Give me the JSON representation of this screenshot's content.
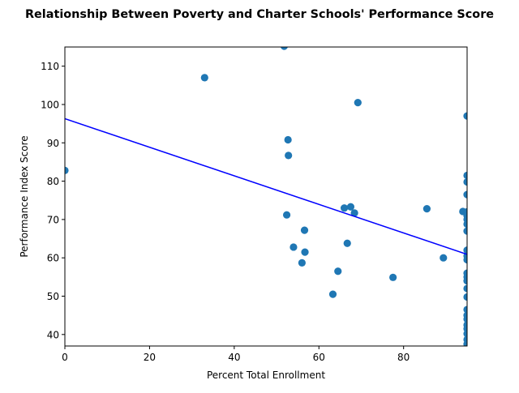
{
  "chart_data": {
    "type": "scatter",
    "title": "Relationship Between Poverty and Charter Schools' Performance Score",
    "xlabel": "Percent Total Enrollment",
    "ylabel": "Performance Index Score",
    "xlim": [
      0,
      95
    ],
    "ylim": [
      37,
      115
    ],
    "x_ticks": [
      0,
      20,
      40,
      60,
      80
    ],
    "y_ticks": [
      40,
      50,
      60,
      70,
      80,
      90,
      100,
      110
    ],
    "grid": false,
    "legend": "none",
    "series": [
      {
        "color": "#1f77b4",
        "marker": "circle",
        "points": [
          [
            0.0,
            82.8
          ],
          [
            33.0,
            107.0
          ],
          [
            51.8,
            115.2
          ],
          [
            52.4,
            71.2
          ],
          [
            52.7,
            90.8
          ],
          [
            52.8,
            86.7
          ],
          [
            54.0,
            62.8
          ],
          [
            56.0,
            58.7
          ],
          [
            56.6,
            67.2
          ],
          [
            56.7,
            61.5
          ],
          [
            63.3,
            50.5
          ],
          [
            64.5,
            56.5
          ],
          [
            66.0,
            73.0
          ],
          [
            66.7,
            63.8
          ],
          [
            67.5,
            73.3
          ],
          [
            68.4,
            71.7
          ],
          [
            69.2,
            100.5
          ],
          [
            77.5,
            54.9
          ],
          [
            85.5,
            72.8
          ],
          [
            89.4,
            60.0
          ],
          [
            94.0,
            72.1
          ],
          [
            95.0,
            97.0
          ],
          [
            95.0,
            81.5
          ],
          [
            95.0,
            79.8
          ],
          [
            95.0,
            76.5
          ],
          [
            95.0,
            72.0
          ],
          [
            95.0,
            71.0
          ],
          [
            95.0,
            70.0
          ],
          [
            95.0,
            68.8
          ],
          [
            95.0,
            67.0
          ],
          [
            95.0,
            62.0
          ],
          [
            95.0,
            60.5
          ],
          [
            95.0,
            59.5
          ],
          [
            95.0,
            56.0
          ],
          [
            95.0,
            55.0
          ],
          [
            95.0,
            54.0
          ],
          [
            95.0,
            52.0
          ],
          [
            95.0,
            49.8
          ],
          [
            95.0,
            46.5
          ],
          [
            95.0,
            45.0
          ],
          [
            95.0,
            44.0
          ],
          [
            95.0,
            42.5
          ],
          [
            95.0,
            41.5
          ],
          [
            95.0,
            40.2
          ],
          [
            95.0,
            38.7
          ],
          [
            95.0,
            37.5
          ]
        ]
      }
    ],
    "trend_line": {
      "color": "#0000ff",
      "points": [
        [
          0,
          96.3
        ],
        [
          95,
          60.9
        ]
      ]
    }
  }
}
